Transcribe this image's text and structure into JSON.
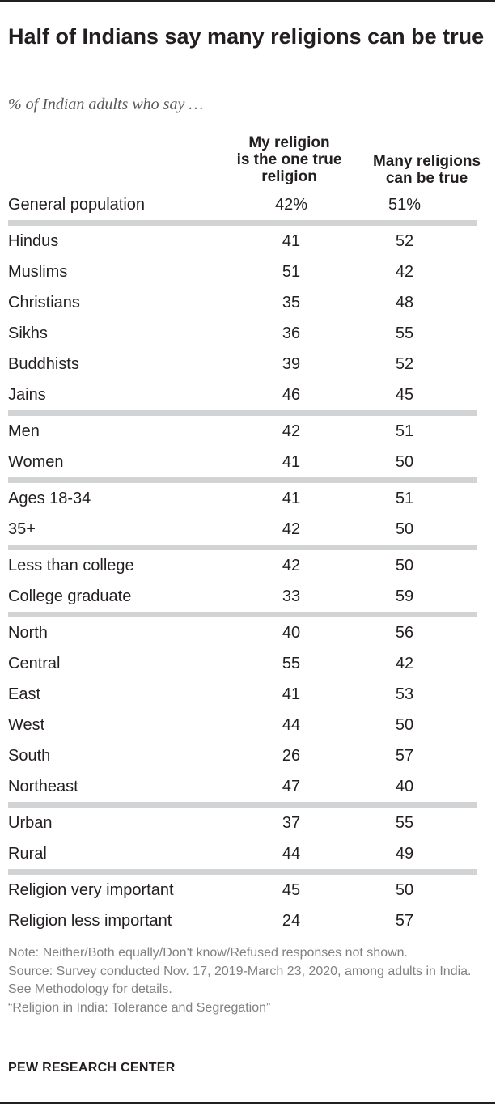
{
  "title": "Half of Indians say many religions can be true",
  "subtitle": "% of Indian adults who say …",
  "columns": [
    "My religion is the one true religion",
    "Many religions can be true"
  ],
  "note": "Note: Neither/Both equally/Don't know/Refused responses not shown.",
  "source": "Source: Survey conducted Nov. 17, 2019-March 23, 2020, among adults in India. See Methodology for details.",
  "report": "“Religion in India: Tolerance and Segregation”",
  "brand": "PEW RESEARCH CENTER",
  "colors": {
    "text": "#231f20",
    "divider": "#d1d3d4",
    "muted": "#808080"
  },
  "chart_data": {
    "type": "table",
    "title": "Half of Indians say many religions can be true",
    "subtitle": "% of Indian adults who say …",
    "columns": [
      "My religion is the one true religion",
      "Many religions can be true"
    ],
    "groups": [
      {
        "rows": [
          {
            "label": "General population",
            "values": [
              "42%",
              "51%"
            ]
          }
        ]
      },
      {
        "rows": [
          {
            "label": "Hindus",
            "values": [
              "41",
              "52"
            ]
          },
          {
            "label": "Muslims",
            "values": [
              "51",
              "42"
            ]
          },
          {
            "label": "Christians",
            "values": [
              "35",
              "48"
            ]
          },
          {
            "label": "Sikhs",
            "values": [
              "36",
              "55"
            ]
          },
          {
            "label": "Buddhists",
            "values": [
              "39",
              "52"
            ]
          },
          {
            "label": "Jains",
            "values": [
              "46",
              "45"
            ]
          }
        ]
      },
      {
        "rows": [
          {
            "label": "Men",
            "values": [
              "42",
              "51"
            ]
          },
          {
            "label": "Women",
            "values": [
              "41",
              "50"
            ]
          }
        ]
      },
      {
        "rows": [
          {
            "label": "Ages 18-34",
            "values": [
              "41",
              "51"
            ]
          },
          {
            "label": "35+",
            "values": [
              "42",
              "50"
            ]
          }
        ]
      },
      {
        "rows": [
          {
            "label": "Less than college",
            "values": [
              "42",
              "50"
            ]
          },
          {
            "label": "College graduate",
            "values": [
              "33",
              "59"
            ]
          }
        ]
      },
      {
        "rows": [
          {
            "label": "North",
            "values": [
              "40",
              "56"
            ]
          },
          {
            "label": "Central",
            "values": [
              "55",
              "42"
            ]
          },
          {
            "label": "East",
            "values": [
              "41",
              "53"
            ]
          },
          {
            "label": "West",
            "values": [
              "44",
              "50"
            ]
          },
          {
            "label": "South",
            "values": [
              "26",
              "57"
            ]
          },
          {
            "label": "Northeast",
            "values": [
              "47",
              "40"
            ]
          }
        ]
      },
      {
        "rows": [
          {
            "label": "Urban",
            "values": [
              "37",
              "55"
            ]
          },
          {
            "label": "Rural",
            "values": [
              "44",
              "49"
            ]
          }
        ]
      },
      {
        "rows": [
          {
            "label": "Religion very important",
            "values": [
              "45",
              "50"
            ]
          },
          {
            "label": "Religion less important",
            "values": [
              "24",
              "57"
            ]
          }
        ]
      }
    ]
  }
}
